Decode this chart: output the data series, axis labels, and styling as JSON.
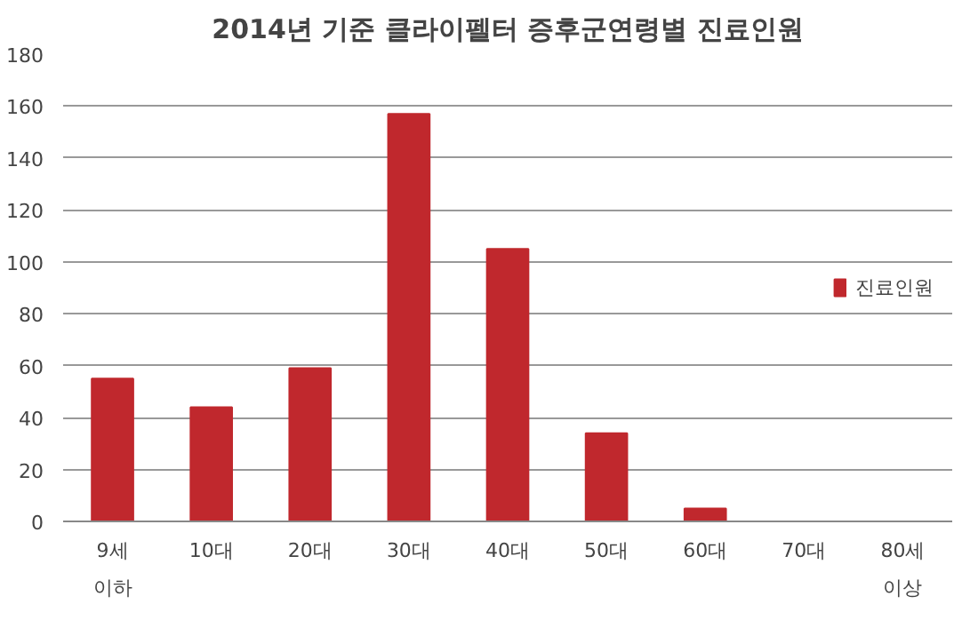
{
  "chart_data": {
    "type": "bar",
    "title": "2014년 기준 클라이펠터 증후군연령별 진료인원",
    "categories": [
      "9세\n이하",
      "10대",
      "20대",
      "30대",
      "40대",
      "50대",
      "60대",
      "70대",
      "80세\n이상"
    ],
    "series": [
      {
        "name": "진료인원",
        "color": "#c0282d",
        "values": [
          55,
          44,
          59,
          157,
          105,
          34,
          5,
          0,
          0
        ]
      }
    ],
    "ylim": [
      0,
      180
    ],
    "yticks": [
      0,
      20,
      40,
      60,
      80,
      100,
      120,
      140,
      160,
      180
    ],
    "grid": "y",
    "legend": "right"
  }
}
